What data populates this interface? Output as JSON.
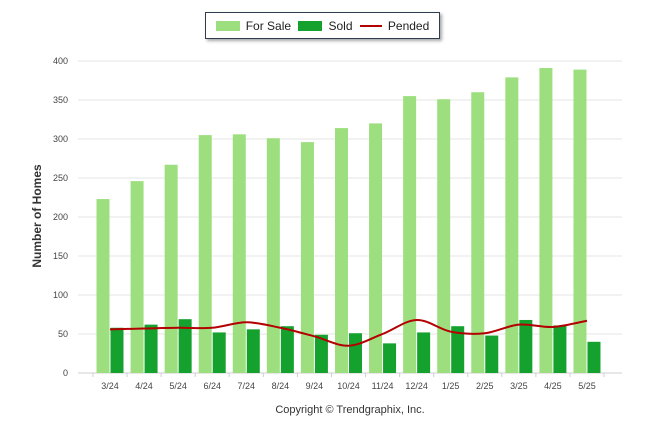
{
  "chart_data": {
    "type": "bar",
    "title": "",
    "xlabel": "",
    "ylabel": "Number of Homes",
    "ylim": [
      0,
      400
    ],
    "yticks": [
      0,
      50,
      100,
      150,
      200,
      250,
      300,
      350,
      400
    ],
    "categories": [
      "3/24",
      "4/24",
      "5/24",
      "6/24",
      "7/24",
      "8/24",
      "9/24",
      "10/24",
      "11/24",
      "12/24",
      "1/25",
      "2/25",
      "3/25",
      "4/25",
      "5/25"
    ],
    "series": [
      {
        "name": "For Sale",
        "kind": "bar",
        "color": "#9ddf7e",
        "values": [
          223,
          246,
          267,
          305,
          306,
          301,
          296,
          314,
          320,
          355,
          351,
          360,
          379,
          391,
          389
        ]
      },
      {
        "name": "Sold",
        "kind": "bar",
        "color": "#15a12e",
        "values": [
          58,
          62,
          69,
          52,
          56,
          60,
          49,
          51,
          38,
          52,
          60,
          48,
          68,
          61,
          40
        ]
      },
      {
        "name": "Pended",
        "kind": "line",
        "color": "#b30000",
        "values": [
          56,
          57,
          58,
          58,
          65,
          58,
          47,
          35,
          50,
          68,
          53,
          51,
          62,
          59,
          67
        ]
      }
    ],
    "grid": true,
    "legend": "top-center",
    "footer": "Copyright © Trendgraphix, Inc."
  }
}
